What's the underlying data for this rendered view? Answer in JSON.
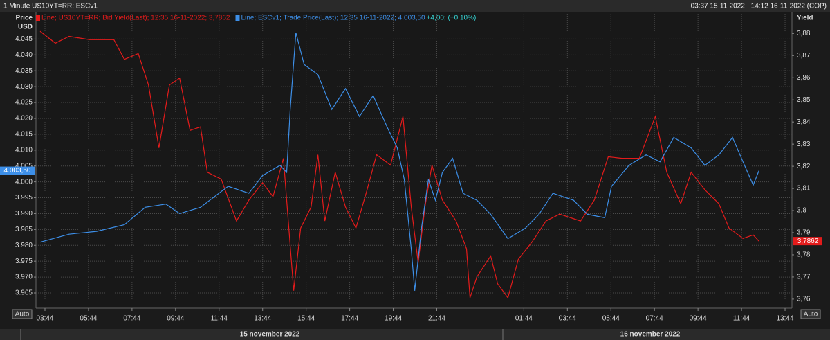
{
  "chart_data": {
    "type": "line",
    "title": "1 Minute US10YT=RR; ESCv1",
    "time_range": "03:37 15-11-2022 - 14:12 16-11-2022 (COP)",
    "ylabel": "Price",
    "yunit": "USD",
    "y2label": "Yield",
    "autoscale_label": "Auto",
    "dates": [
      "15 november 2022",
      "16 november 2022"
    ],
    "grid": true,
    "xlim": [
      3.32,
      38.05
    ],
    "xticks": [
      {
        "value": 3.733,
        "label": "03:44"
      },
      {
        "value": 5.733,
        "label": "05:44"
      },
      {
        "value": 7.733,
        "label": "07:44"
      },
      {
        "value": 9.733,
        "label": "09:44"
      },
      {
        "value": 11.733,
        "label": "11:44"
      },
      {
        "value": 13.733,
        "label": "13:44"
      },
      {
        "value": 15.733,
        "label": "15:44"
      },
      {
        "value": 17.733,
        "label": "17:44"
      },
      {
        "value": 19.733,
        "label": "19:44"
      },
      {
        "value": 21.733,
        "label": "21:44"
      },
      {
        "value": 25.733,
        "label": "01:44"
      },
      {
        "value": 27.733,
        "label": "03:44"
      },
      {
        "value": 29.733,
        "label": "05:44"
      },
      {
        "value": 31.733,
        "label": "07:44"
      },
      {
        "value": 33.733,
        "label": "09:44"
      },
      {
        "value": 35.733,
        "label": "11:44"
      },
      {
        "value": 37.733,
        "label": "13:44"
      }
    ],
    "ylim": [
      3960.2,
      4053.6
    ],
    "yticks": [
      {
        "value": 3965,
        "label": "3.965"
      },
      {
        "value": 3970,
        "label": "3.970"
      },
      {
        "value": 3975,
        "label": "3.975"
      },
      {
        "value": 3980,
        "label": "3.980"
      },
      {
        "value": 3985,
        "label": "3.985"
      },
      {
        "value": 3990,
        "label": "3.990"
      },
      {
        "value": 3995,
        "label": "3.995"
      },
      {
        "value": 4000,
        "label": "4.000"
      },
      {
        "value": 4005,
        "label": "4.005"
      },
      {
        "value": 4010,
        "label": "4.010"
      },
      {
        "value": 4015,
        "label": "4.015"
      },
      {
        "value": 4020,
        "label": "4.020"
      },
      {
        "value": 4025,
        "label": "4.025"
      },
      {
        "value": 4030,
        "label": "4.030"
      },
      {
        "value": 4035,
        "label": "4.035"
      },
      {
        "value": 4040,
        "label": "4.040"
      },
      {
        "value": 4045,
        "label": "4.045"
      }
    ],
    "y2lim": [
      3.7559,
      3.8898
    ],
    "y2ticks": [
      {
        "value": 3.76,
        "label": "3,76"
      },
      {
        "value": 3.77,
        "label": "3,77"
      },
      {
        "value": 3.78,
        "label": "3,78"
      },
      {
        "value": 3.79,
        "label": "3,79"
      },
      {
        "value": 3.8,
        "label": "3,8"
      },
      {
        "value": 3.81,
        "label": "3,81"
      },
      {
        "value": 3.82,
        "label": "3,82"
      },
      {
        "value": 3.83,
        "label": "3,83"
      },
      {
        "value": 3.84,
        "label": "3,84"
      },
      {
        "value": 3.85,
        "label": "3,85"
      },
      {
        "value": 3.86,
        "label": "3,86"
      },
      {
        "value": 3.87,
        "label": "3,87"
      },
      {
        "value": 3.88,
        "label": "3,88"
      }
    ],
    "series": [
      {
        "name": "Line; US10YT=RR; Bid Yield(Last); 12:35 16-11-2022; 3,7862",
        "color": "#e41b1b",
        "axis": "y2",
        "x": [
          3.51,
          4.21,
          4.84,
          5.79,
          6.9,
          7.38,
          8.02,
          8.49,
          8.97,
          9.45,
          9.92,
          10.4,
          10.88,
          11.19,
          11.83,
          12.53,
          13.1,
          13.73,
          14.21,
          14.69,
          15.16,
          15.48,
          15.96,
          16.27,
          16.59,
          17.07,
          17.54,
          18.02,
          18.49,
          18.97,
          19.61,
          20.18,
          20.56,
          20.88,
          21.19,
          21.51,
          21.99,
          22.62,
          23.1,
          23.26,
          23.58,
          24.21,
          24.53,
          25.0,
          25.48,
          26.11,
          26.75,
          27.38,
          28.34,
          28.97,
          29.61,
          30.24,
          31.04,
          31.77,
          32.3,
          32.94,
          33.42,
          34.05,
          34.69,
          35.16,
          35.8,
          36.27,
          36.53
        ],
        "values": [
          3.881,
          3.8756,
          3.8787,
          3.8772,
          3.8772,
          3.8683,
          3.8709,
          3.8567,
          3.8283,
          3.8567,
          3.8598,
          3.8362,
          3.8378,
          3.8173,
          3.8142,
          3.7953,
          3.8047,
          3.8126,
          3.8063,
          3.8236,
          3.7638,
          3.7921,
          3.8016,
          3.8252,
          3.7953,
          3.8173,
          3.8016,
          3.7921,
          3.8079,
          3.8252,
          3.8205,
          3.8425,
          3.8016,
          3.7764,
          3.8016,
          3.8205,
          3.8047,
          3.7953,
          3.7827,
          3.7606,
          3.7701,
          3.7795,
          3.7669,
          3.7606,
          3.778,
          3.7858,
          3.7953,
          3.7984,
          3.7953,
          3.8047,
          3.8243,
          3.8236,
          3.8236,
          3.8425,
          3.8173,
          3.8031,
          3.8173,
          3.8094,
          3.8031,
          3.7921,
          3.7874,
          3.789,
          3.7862
        ],
        "value_labels": [
          null,
          null,
          null,
          null,
          null,
          null,
          null,
          null,
          null,
          null,
          null,
          null,
          null,
          null,
          null,
          null,
          null,
          null,
          null,
          null,
          null,
          null,
          null,
          null,
          null,
          null,
          null,
          null,
          null,
          null,
          null,
          null,
          null,
          null,
          null,
          null,
          null,
          null,
          null,
          null,
          null,
          null,
          null,
          null,
          null,
          null,
          null,
          null,
          null,
          null,
          null,
          null,
          null,
          null,
          null,
          null,
          null,
          null,
          null,
          null,
          null,
          null,
          "3,7862"
        ]
      },
      {
        "name": "Line; ESCv1; Trade Price(Last); 12:35 16-11-2022; 4.003,50",
        "change": "+4,00; (+0,10%)",
        "color": "#3d8fe8",
        "x": [
          3.51,
          4.84,
          6.11,
          7.38,
          8.34,
          9.29,
          9.92,
          10.88,
          11.51,
          12.15,
          13.1,
          13.73,
          14.53,
          14.84,
          15.0,
          15.26,
          15.64,
          16.27,
          16.91,
          17.54,
          18.18,
          18.81,
          19.45,
          19.92,
          20.24,
          20.56,
          20.72,
          21.03,
          21.35,
          21.67,
          21.99,
          22.46,
          22.94,
          23.58,
          24.21,
          25.0,
          25.8,
          26.43,
          27.07,
          28.02,
          28.65,
          29.45,
          29.76,
          30.56,
          31.35,
          31.99,
          32.62,
          33.42,
          34.05,
          34.69,
          35.32,
          35.8,
          36.27,
          36.53
        ],
        "values": [
          3981,
          3983.5,
          3984.4,
          3986.5,
          3992,
          3993,
          3990,
          3992,
          3995.3,
          3998.6,
          3996.4,
          4002,
          4005.2,
          4003,
          4022.8,
          4047,
          4037,
          4033.8,
          4022.8,
          4029.4,
          4020.6,
          4027.2,
          4017.3,
          4010.7,
          4000.8,
          3978.8,
          3965.7,
          3985.4,
          4000.8,
          3994.2,
          4003,
          4007.4,
          3996.4,
          3994.2,
          3989.8,
          3982.1,
          3985.4,
          3989.8,
          3996.4,
          3994.2,
          3989.8,
          3988.7,
          3998.6,
          4005.2,
          4008.5,
          4006.3,
          4014,
          4010.7,
          4005.2,
          4008.5,
          4014,
          4006.3,
          3999,
          4003.5
        ],
        "value_labels": [
          null,
          null,
          null,
          null,
          null,
          null,
          null,
          null,
          null,
          null,
          null,
          null,
          null,
          null,
          null,
          null,
          null,
          null,
          null,
          null,
          null,
          null,
          null,
          null,
          null,
          null,
          null,
          null,
          null,
          null,
          null,
          null,
          null,
          null,
          null,
          null,
          null,
          null,
          null,
          null,
          null,
          null,
          null,
          null,
          null,
          null,
          null,
          null,
          null,
          null,
          null,
          null,
          null,
          "4.003,50"
        ]
      }
    ]
  }
}
